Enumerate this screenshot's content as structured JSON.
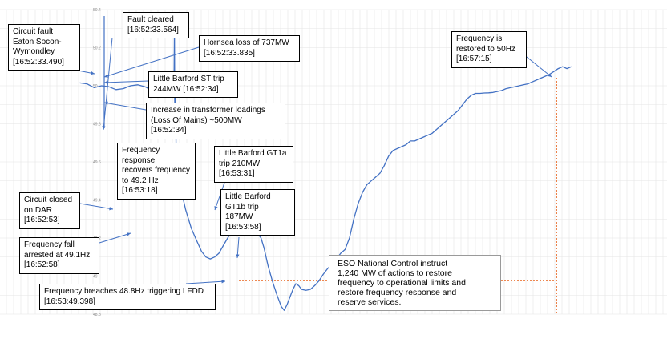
{
  "chart_data": {
    "type": "line",
    "title": "",
    "xlabel": "",
    "ylabel": "",
    "ylim": [
      48.8,
      50.4
    ],
    "y_ticks": [
      "50.4",
      "50.2",
      "50",
      "49.8",
      "49.6",
      "49.4",
      "49.2",
      "49",
      "48.8"
    ],
    "x_range": [
      -120,
      340
    ],
    "grid": true,
    "line_color": "#4472c4",
    "series": [
      {
        "values": [
          [
            -65,
            50.015
          ],
          [
            -60,
            50.01
          ],
          [
            -55,
            49.99
          ],
          [
            -50,
            50.0
          ],
          [
            -45,
            49.995
          ],
          [
            -40,
            49.98
          ],
          [
            -35,
            49.985
          ],
          [
            -30,
            50.0
          ],
          [
            -25,
            50.005
          ],
          [
            -20,
            49.995
          ],
          [
            -15,
            49.975
          ],
          [
            -12,
            49.985
          ],
          [
            -8,
            49.995
          ],
          [
            -5,
            50.01
          ],
          [
            -2,
            50.005
          ],
          [
            0,
            49.995
          ],
          [
            0.3,
            50.3
          ],
          [
            0.6,
            49.75
          ],
          [
            1,
            49.97
          ],
          [
            1.5,
            49.62
          ],
          [
            3,
            49.55
          ],
          [
            5,
            49.45
          ],
          [
            8,
            49.35
          ],
          [
            12,
            49.25
          ],
          [
            16,
            49.18
          ],
          [
            19,
            49.13
          ],
          [
            22,
            49.1
          ],
          [
            25,
            49.09
          ],
          [
            28,
            49.1
          ],
          [
            31,
            49.12
          ],
          [
            34,
            49.16
          ],
          [
            37,
            49.2
          ],
          [
            40,
            49.235
          ],
          [
            43,
            49.25
          ],
          [
            46,
            49.26
          ],
          [
            49,
            49.257
          ],
          [
            52,
            49.25
          ],
          [
            55,
            49.24
          ],
          [
            58,
            49.22
          ],
          [
            60,
            49.2
          ],
          [
            62,
            49.15
          ],
          [
            65,
            49.05
          ],
          [
            68,
            48.97
          ],
          [
            71,
            48.9
          ],
          [
            74,
            48.84
          ],
          [
            76,
            48.82
          ],
          [
            78,
            48.85
          ],
          [
            80,
            48.89
          ],
          [
            82,
            48.93
          ],
          [
            84,
            48.96
          ],
          [
            86,
            48.95
          ],
          [
            88,
            48.93
          ],
          [
            91,
            48.925
          ],
          [
            94,
            48.93
          ],
          [
            97,
            48.95
          ],
          [
            100,
            48.975
          ],
          [
            103,
            49.01
          ],
          [
            106,
            49.04
          ],
          [
            109,
            49.06
          ],
          [
            112,
            49.09
          ],
          [
            115,
            49.12
          ],
          [
            118,
            49.14
          ],
          [
            121,
            49.2
          ],
          [
            124,
            49.3
          ],
          [
            127,
            49.38
          ],
          [
            130,
            49.44
          ],
          [
            133,
            49.48
          ],
          [
            136,
            49.5
          ],
          [
            139,
            49.52
          ],
          [
            142,
            49.54
          ],
          [
            145,
            49.58
          ],
          [
            148,
            49.63
          ],
          [
            151,
            49.66
          ],
          [
            154,
            49.67
          ],
          [
            157,
            49.68
          ],
          [
            160,
            49.69
          ],
          [
            163,
            49.71
          ],
          [
            166,
            49.71
          ],
          [
            169,
            49.72
          ],
          [
            172,
            49.73
          ],
          [
            175,
            49.74
          ],
          [
            178,
            49.75
          ],
          [
            181,
            49.77
          ],
          [
            184,
            49.79
          ],
          [
            187,
            49.81
          ],
          [
            190,
            49.83
          ],
          [
            193,
            49.85
          ],
          [
            196,
            49.87
          ],
          [
            199,
            49.9
          ],
          [
            202,
            49.93
          ],
          [
            205,
            49.95
          ],
          [
            208,
            49.96
          ],
          [
            211,
            49.96
          ],
          [
            214,
            49.962
          ],
          [
            217,
            49.963
          ],
          [
            220,
            49.965
          ],
          [
            223,
            49.97
          ],
          [
            226,
            49.975
          ],
          [
            229,
            49.985
          ],
          [
            232,
            49.99
          ],
          [
            235,
            49.995
          ],
          [
            238,
            50.0
          ],
          [
            241,
            50.005
          ],
          [
            244,
            50.01
          ],
          [
            247,
            50.02
          ],
          [
            250,
            50.03
          ],
          [
            253,
            50.04
          ],
          [
            256,
            50.05
          ],
          [
            259,
            50.06
          ],
          [
            262,
            50.075
          ],
          [
            265,
            50.09
          ],
          [
            268,
            50.1
          ],
          [
            271,
            50.09
          ],
          [
            274,
            50.1
          ]
        ]
      }
    ],
    "markers": [
      {
        "label_index": 10,
        "x": 179,
        "y": 49.998
      }
    ]
  },
  "annotations": [
    {
      "id": "circuit-fault",
      "text": "Circuit fault\nEaton Socon-\nWymondley\n[16:52:33.490]"
    },
    {
      "id": "fault-cleared",
      "text": "Fault cleared\n[16:52:33.564]"
    },
    {
      "id": "hornsea-loss",
      "text": "Hornsea loss of 737MW\n[16:52:33.835]"
    },
    {
      "id": "little-barford-st-trip",
      "text": "Little Barford ST trip\n244MW [16:52:34]"
    },
    {
      "id": "transformer-loadings",
      "text": "Increase in transformer loadings\n(Loss Of Mains) ~500MW\n[16:52:34]"
    },
    {
      "id": "frequency-response-recovers",
      "text": "Frequency response\nrecovers frequency\nto 49.2 Hz\n[16:53:18]"
    },
    {
      "id": "little-barford-gt1a-trip",
      "text": "Little Barford GT1a\ntrip 210MW\n[16:53:31]"
    },
    {
      "id": "circuit-closed-dar",
      "text": "Circuit closed\non DAR\n[16:52:53]"
    },
    {
      "id": "little-barford-gt1b-trip",
      "text": "Little Barford\nGT1b trip\n187MW\n[16:53:58]"
    },
    {
      "id": "frequency-fall-arrested",
      "text": "Frequency fall\narrested at 49.1Hz\n[16:52:58]"
    },
    {
      "id": "frequency-breaches-lfdd",
      "text": "Frequency breaches 48.8Hz triggering LFDD\n[16:53:49.398]"
    },
    {
      "id": "eso-national-control",
      "text": "ESO National Control instruct\n1,240 MW of actions to restore\nfrequency to operational limits and\nrestore frequency response and\nreserve services."
    },
    {
      "id": "frequency-restored",
      "text": "Frequency is\nrestored to 50Hz\n[16:57:15]"
    }
  ],
  "colors": {
    "line": "#4472c4",
    "grid": "#e4e4e4",
    "axis_text": "#8c8c8c",
    "dotted": "#e8621a",
    "annotation_border": "#000000",
    "eso_border": "#9a9a9a"
  }
}
